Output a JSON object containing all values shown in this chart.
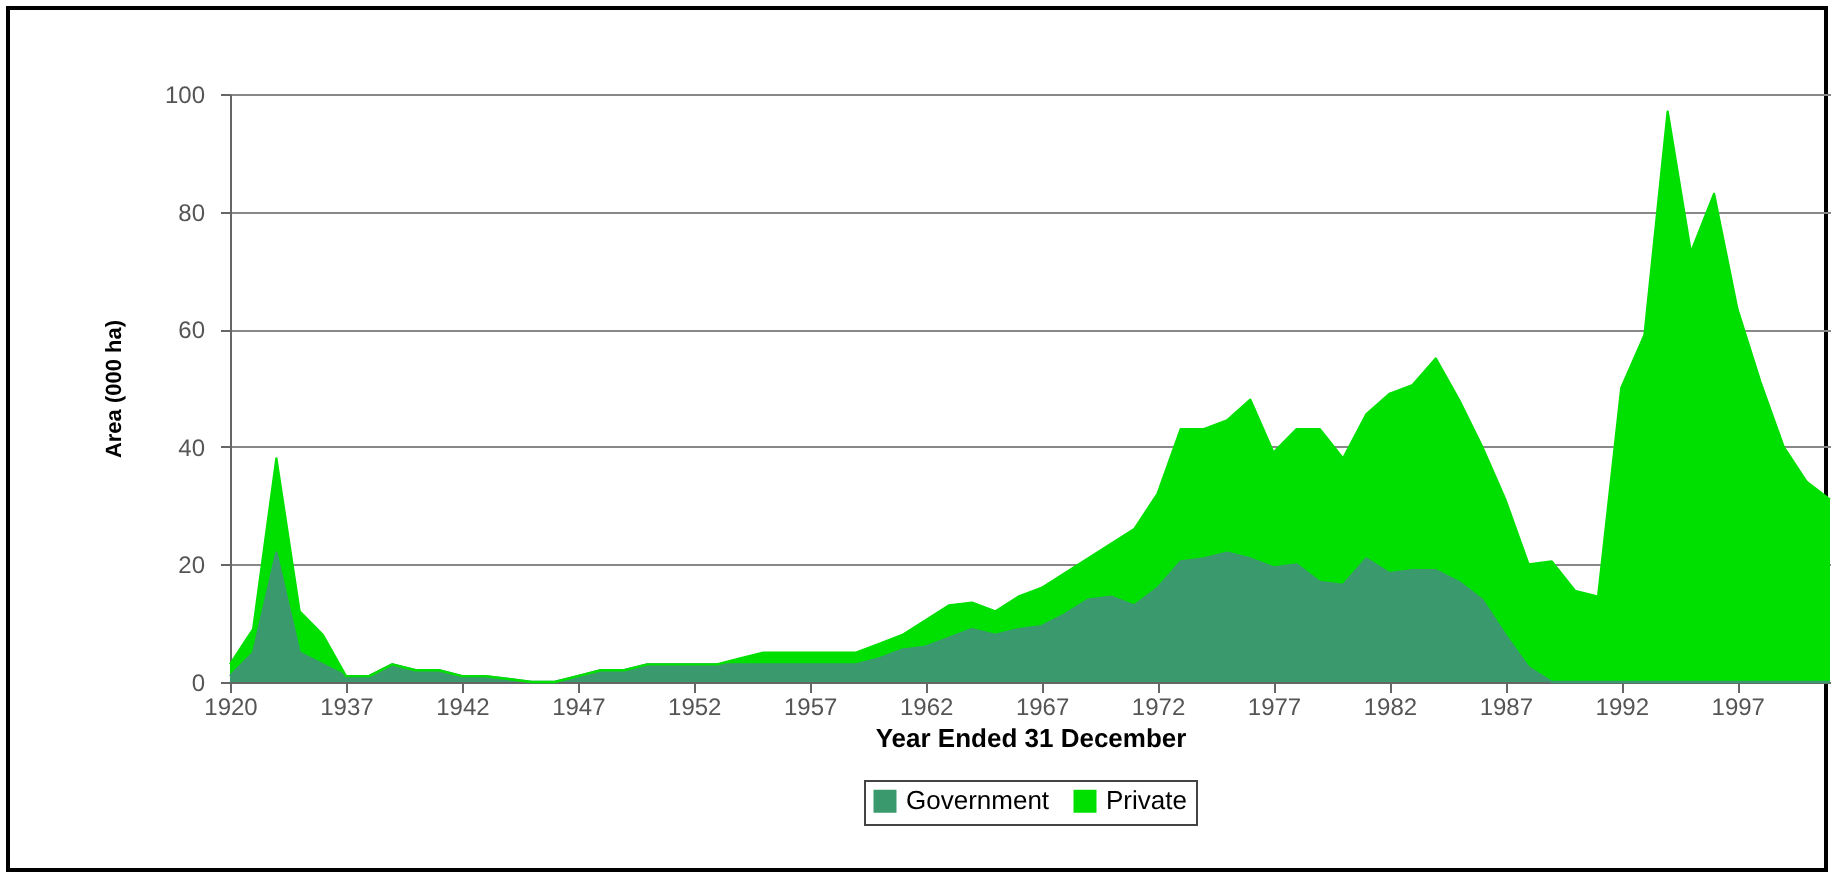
{
  "chart_data": {
    "type": "area",
    "stacked": true,
    "xlabel": "Year Ended 31 December",
    "ylabel": "Area (000 ha)",
    "categories": [
      "1920",
      null,
      null,
      null,
      null,
      "1937",
      null,
      null,
      null,
      null,
      "1942",
      null,
      null,
      null,
      null,
      "1947",
      null,
      null,
      null,
      null,
      "1952",
      null,
      null,
      null,
      null,
      "1957",
      null,
      null,
      null,
      null,
      "1962",
      null,
      null,
      null,
      null,
      "1967",
      null,
      null,
      null,
      null,
      "1972",
      null,
      null,
      null,
      null,
      "1977",
      null,
      null,
      null,
      null,
      "1982",
      null,
      null,
      null,
      null,
      "1987",
      null,
      null,
      null,
      null,
      "1992",
      null,
      null,
      null,
      null,
      "1997",
      null,
      null,
      null,
      null
    ],
    "series": [
      {
        "name": "Government",
        "color": "#3a9a6e",
        "values": [
          1,
          5,
          22,
          5,
          3,
          1,
          1,
          3,
          2,
          2,
          1,
          1,
          0.5,
          0,
          0,
          1,
          2,
          2,
          3,
          3,
          3,
          3,
          3,
          3,
          3,
          3,
          3,
          3,
          4,
          5.5,
          6,
          7.5,
          9,
          8,
          9,
          9.5,
          11.5,
          14,
          14.5,
          13,
          16,
          20.5,
          21,
          22,
          21,
          19.5,
          20,
          17,
          16.5,
          21,
          18.5,
          19,
          19,
          17,
          14,
          8,
          2.5,
          0,
          0,
          0,
          0,
          0,
          0,
          0,
          0,
          0,
          0,
          0,
          0,
          0
        ]
      },
      {
        "name": "Private",
        "color": "#00e000",
        "values": [
          2,
          4,
          16,
          7,
          5,
          0,
          0,
          0,
          0,
          0,
          0,
          0,
          0,
          0,
          0,
          0,
          0,
          0,
          0,
          0,
          0,
          0,
          1,
          2,
          2,
          2,
          2,
          2,
          2.5,
          2.5,
          4.5,
          5.5,
          4.5,
          4,
          5.5,
          6.5,
          7,
          7,
          9,
          13,
          16,
          22.5,
          22,
          22.5,
          27,
          19.5,
          23,
          26,
          21.5,
          24.5,
          30.5,
          31.5,
          36,
          31,
          26,
          23,
          17.5,
          20.5,
          15.5,
          14.5,
          50,
          59,
          97,
          73,
          83,
          63.5,
          51,
          40,
          34,
          31
        ]
      }
    ],
    "ylim": [
      0,
      100
    ],
    "yticks": [
      0,
      20,
      40,
      60,
      80,
      100
    ],
    "grid": "y",
    "legend": "bottom"
  }
}
